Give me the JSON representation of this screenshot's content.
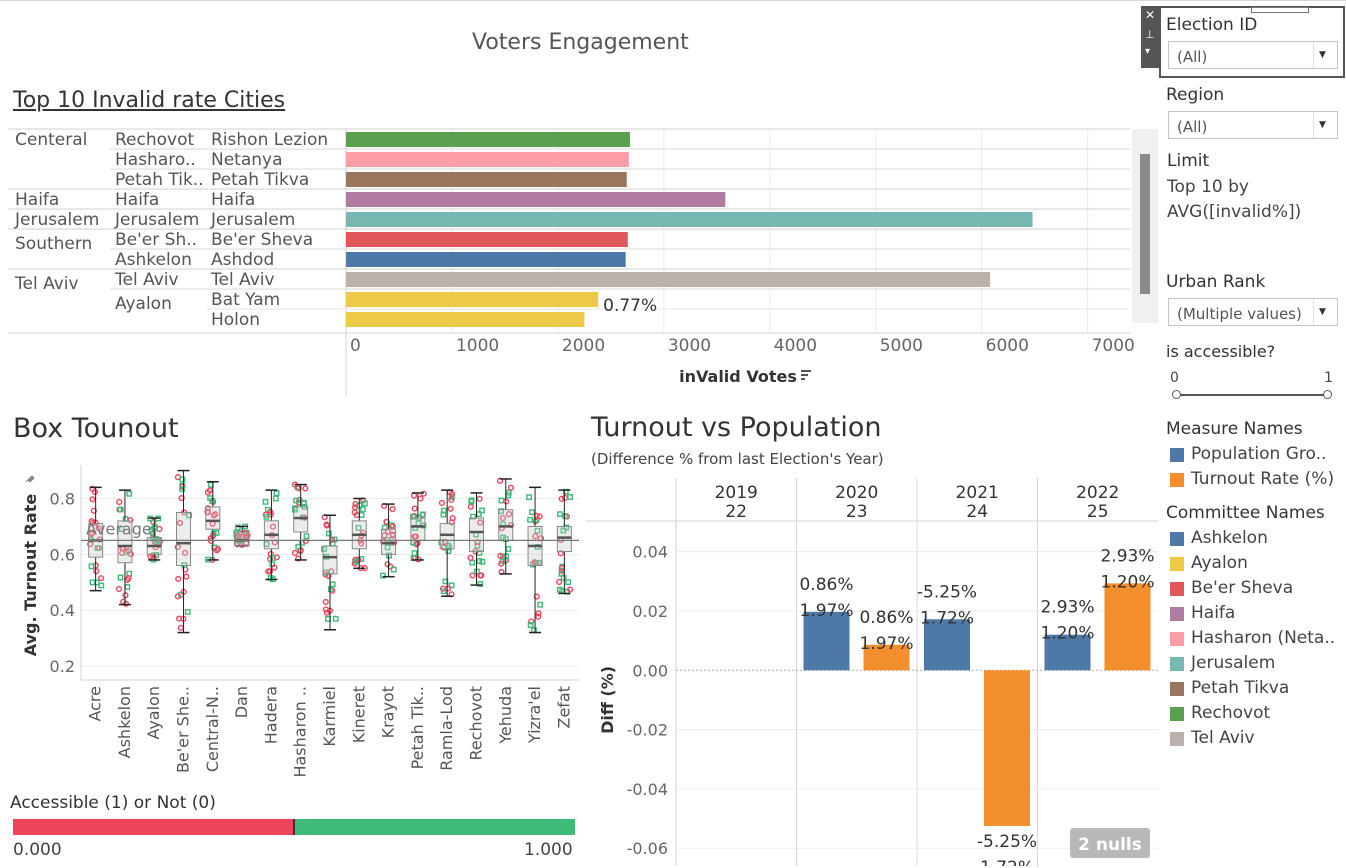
{
  "dashboard": {
    "title": "Voters Engagement"
  },
  "filters": {
    "election_id": {
      "label": "Election ID",
      "value": "(All)"
    },
    "region": {
      "label": "Region",
      "value": "(All)"
    },
    "limit": {
      "label": "Limit",
      "text_line1": "Top 10 by",
      "text_line2": "AVG([invalid%])"
    },
    "urban_rank": {
      "label": "Urban Rank",
      "value": "(Multiple values)"
    },
    "accessible": {
      "label": "is accessible?",
      "min": "0",
      "max": "1"
    }
  },
  "legend_measure": {
    "title": "Measure Names",
    "items": [
      {
        "label": "Population Gro..",
        "color": "#4e79a7"
      },
      {
        "label": "Turnout Rate (%)",
        "color": "#f28e2b"
      }
    ]
  },
  "legend_committee": {
    "title": "Committee Names",
    "items": [
      {
        "label": "Ashkelon",
        "color": "#4e79a7"
      },
      {
        "label": "Ayalon",
        "color": "#edc948"
      },
      {
        "label": "Be'er Sheva",
        "color": "#e15759"
      },
      {
        "label": "Haifa",
        "color": "#b07aa1"
      },
      {
        "label": "Hasharon (Neta..",
        "color": "#ff9da7"
      },
      {
        "label": "Jerusalem",
        "color": "#76b7b2"
      },
      {
        "label": "Petah Tikva",
        "color": "#9c755f"
      },
      {
        "label": "Rechovot",
        "color": "#59a14f"
      },
      {
        "label": "Tel Aviv",
        "color": "#bab0ac"
      }
    ]
  },
  "top10": {
    "title": "Top 10 Invalid rate Cities",
    "chart_data": {
      "type": "bar",
      "orientation": "horizontal",
      "xlabel": "inValid Votes",
      "xlim": [
        0,
        7400
      ],
      "xticks": [
        "0",
        "1000",
        "2000",
        "3000",
        "4000",
        "5000",
        "6000",
        "7000"
      ],
      "rows": [
        {
          "region": "Centeral",
          "committee": "Rechovot",
          "city": "Rishon Lezion",
          "value": 2680,
          "color": "#59a14f"
        },
        {
          "region": "",
          "committee": "Hasharo..",
          "city": "Netanya",
          "value": 2670,
          "color": "#ff9da7"
        },
        {
          "region": "",
          "committee": "Petah Tik..",
          "city": "Petah Tikva",
          "value": 2650,
          "color": "#9c755f"
        },
        {
          "region": "Haifa",
          "committee": "Haifa",
          "city": "Haifa",
          "value": 3580,
          "color": "#b07aa1"
        },
        {
          "region": "Jerusalem",
          "committee": "Jerusalem",
          "city": "Jerusalem",
          "value": 6480,
          "color": "#76b7b2"
        },
        {
          "region": "Southern",
          "committee": "Be'er Sh..",
          "city": "Be'er Sheva",
          "value": 2660,
          "color": "#e15759"
        },
        {
          "region": "",
          "committee": "Ashkelon",
          "city": "Ashdod",
          "value": 2640,
          "color": "#4e79a7"
        },
        {
          "region": "Tel Aviv",
          "committee": "Tel Aviv",
          "city": "Tel Aviv",
          "value": 6080,
          "color": "#bab0ac"
        },
        {
          "region": "",
          "committee": "Ayalon",
          "city": "Bat Yam",
          "value": 2380,
          "color": "#edc948",
          "label": "0.77%"
        },
        {
          "region": "",
          "committee": "",
          "city": "Holon",
          "value": 2250,
          "color": "#edc948"
        }
      ]
    }
  },
  "box": {
    "title": "Box Tounout",
    "chart_data": {
      "type": "box",
      "ylabel": "Avg. Turnout Rate",
      "ylim": [
        0.15,
        0.92
      ],
      "yticks": [
        0.2,
        0.4,
        0.6,
        0.8
      ],
      "reference_line": {
        "label": "Average",
        "value": 0.65
      },
      "categories": [
        "Acre",
        "Ashkelon",
        "Ayalon",
        "Be'er She..",
        "Central-N..",
        "Dan",
        "Hadera",
        "Hasharon ..",
        "Karmiel",
        "Kineret",
        "Krayot",
        "Petah Tik..",
        "Ramla-Lod",
        "Rechovot",
        "Yehuda",
        "Yizra'el",
        "Zefat"
      ],
      "boxes": [
        {
          "min": 0.47,
          "q1": 0.59,
          "median": 0.65,
          "q3": 0.71,
          "max": 0.84
        },
        {
          "min": 0.42,
          "q1": 0.57,
          "median": 0.63,
          "q3": 0.72,
          "max": 0.83
        },
        {
          "min": 0.58,
          "q1": 0.6,
          "median": 0.63,
          "q3": 0.66,
          "max": 0.73
        },
        {
          "min": 0.32,
          "q1": 0.56,
          "median": 0.64,
          "q3": 0.75,
          "max": 0.9
        },
        {
          "min": 0.58,
          "q1": 0.69,
          "median": 0.72,
          "q3": 0.77,
          "max": 0.86
        },
        {
          "min": 0.63,
          "q1": 0.63,
          "median": 0.65,
          "q3": 0.68,
          "max": 0.7
        },
        {
          "min": 0.51,
          "q1": 0.62,
          "median": 0.67,
          "q3": 0.72,
          "max": 0.83
        },
        {
          "min": 0.58,
          "q1": 0.68,
          "median": 0.73,
          "q3": 0.77,
          "max": 0.85
        },
        {
          "min": 0.33,
          "q1": 0.53,
          "median": 0.59,
          "q3": 0.63,
          "max": 0.74
        },
        {
          "min": 0.55,
          "q1": 0.62,
          "median": 0.67,
          "q3": 0.72,
          "max": 0.8
        },
        {
          "min": 0.52,
          "q1": 0.6,
          "median": 0.64,
          "q3": 0.69,
          "max": 0.78
        },
        {
          "min": 0.58,
          "q1": 0.65,
          "median": 0.7,
          "q3": 0.73,
          "max": 0.82
        },
        {
          "min": 0.45,
          "q1": 0.62,
          "median": 0.67,
          "q3": 0.71,
          "max": 0.83
        },
        {
          "min": 0.49,
          "q1": 0.61,
          "median": 0.68,
          "q3": 0.73,
          "max": 0.82
        },
        {
          "min": 0.53,
          "q1": 0.65,
          "median": 0.7,
          "q3": 0.76,
          "max": 0.87
        },
        {
          "min": 0.32,
          "q1": 0.56,
          "median": 0.63,
          "q3": 0.7,
          "max": 0.84
        },
        {
          "min": 0.46,
          "q1": 0.61,
          "median": 0.66,
          "q3": 0.7,
          "max": 0.83
        }
      ],
      "point_colors": {
        "accessible": "#3dbb78",
        "not_accessible": "#f0435c"
      }
    }
  },
  "accessible_legend": {
    "title": "Accessible (1) or Not (0)",
    "min_label": "0.000",
    "max_label": "1.000",
    "color_low": "#f0435c",
    "color_high": "#3dbb78"
  },
  "turnout": {
    "title": "Turnout vs Population",
    "subtitle": "(Difference % from last Election's Year)",
    "chart_data": {
      "type": "bar",
      "ylabel": "Diff (%)",
      "ylim": [
        -0.066,
        0.05
      ],
      "yticks": [
        "0.04",
        "0.02",
        "0.00",
        "-0.02",
        "-0.04",
        "-0.06"
      ],
      "columns": [
        {
          "year": "2019",
          "id": "22",
          "bars": []
        },
        {
          "year": "2020",
          "id": "23",
          "bars": [
            {
              "measure": "Population Growth",
              "value": 0.0197,
              "color": "#4e79a7",
              "labels": [
                "0.86%",
                "1.97%"
              ]
            },
            {
              "measure": "Turnout Rate (%)",
              "value": 0.0086,
              "color": "#f28e2b",
              "labels": [
                "0.86%",
                "1.97%"
              ]
            }
          ]
        },
        {
          "year": "2021",
          "id": "24",
          "bars": [
            {
              "measure": "Population Growth",
              "value": 0.0172,
              "color": "#4e79a7",
              "labels": [
                "-5.25%",
                "1.72%"
              ]
            },
            {
              "measure": "Turnout Rate (%)",
              "value": -0.0525,
              "color": "#f28e2b",
              "labels": [
                "-5.25%",
                "1.72%"
              ]
            }
          ]
        },
        {
          "year": "2022",
          "id": "25",
          "bars": [
            {
              "measure": "Population Growth",
              "value": 0.012,
              "color": "#4e79a7",
              "labels": [
                "2.93%",
                "1.20%"
              ]
            },
            {
              "measure": "Turnout Rate (%)",
              "value": 0.0293,
              "color": "#f28e2b",
              "labels": [
                "2.93%",
                "1.20%"
              ]
            }
          ]
        }
      ],
      "nulls_badge": "2 nulls"
    }
  }
}
